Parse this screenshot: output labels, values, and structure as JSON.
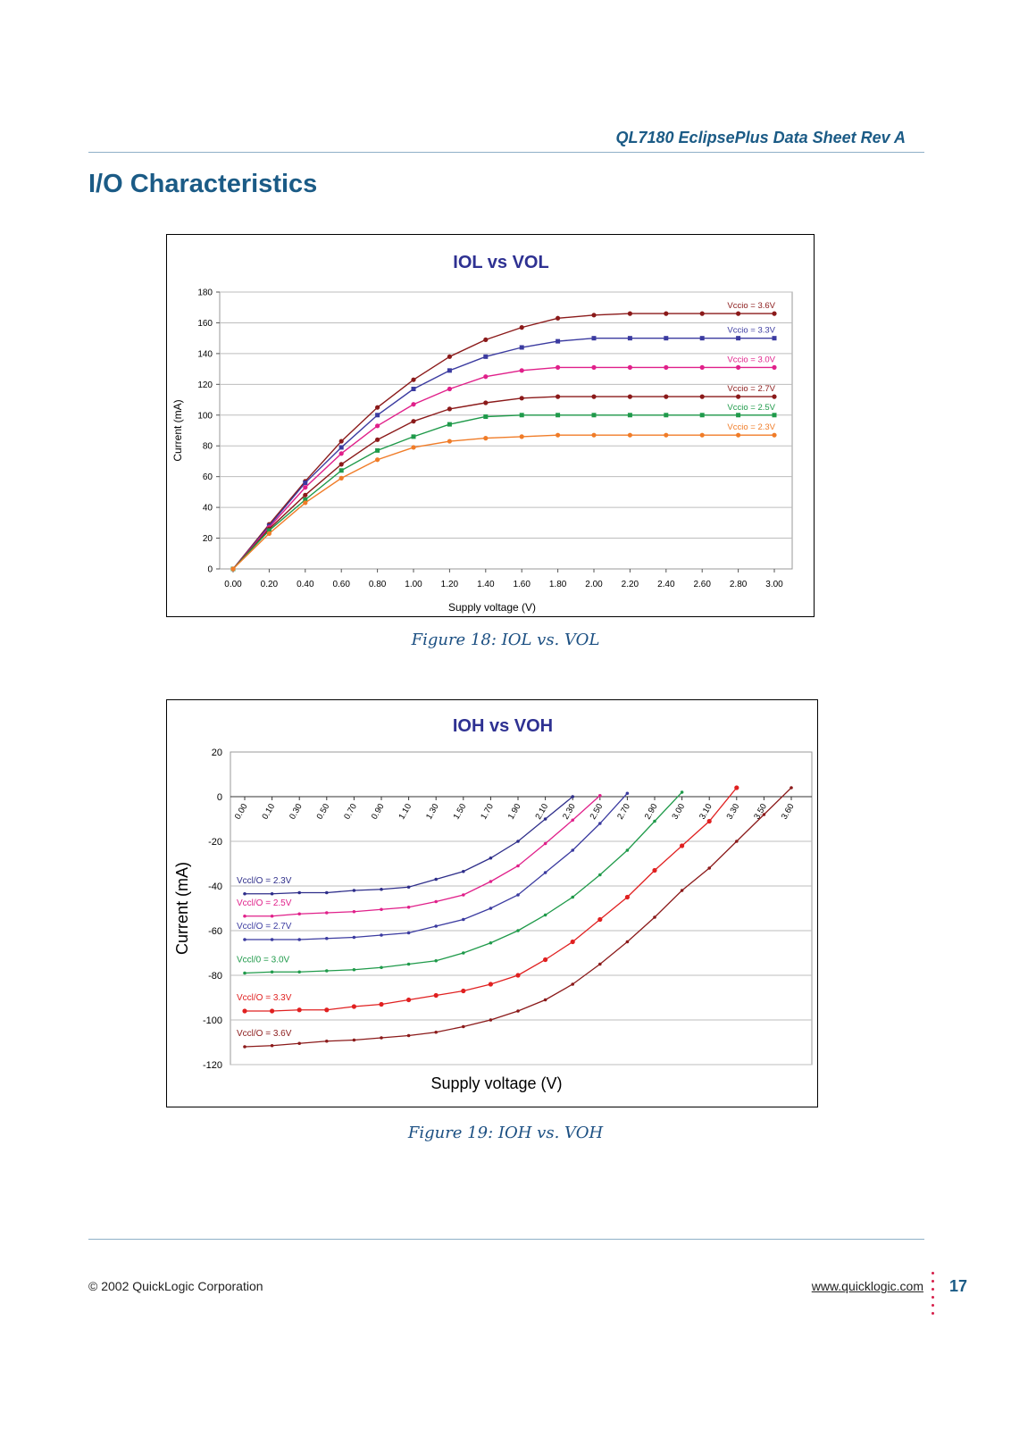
{
  "header": {
    "doc_title": "QL7180 EclipsePlus Data Sheet Rev A"
  },
  "page_title": "I/O Characteristics",
  "footer": {
    "copyright": "© 2002 QuickLogic Corporation",
    "url": "www.quicklogic.com",
    "page_number": "17"
  },
  "figures": [
    {
      "caption": "Figure 18: IOL vs. VOL"
    },
    {
      "caption": "Figure 19: IOH vs. VOH"
    }
  ],
  "chart_data": [
    {
      "type": "line",
      "title": "IOL vs VOL",
      "xlabel": "Supply voltage (V)",
      "ylabel": "Current (mA)",
      "x": [
        0.0,
        0.2,
        0.4,
        0.6,
        0.8,
        1.0,
        1.2,
        1.4,
        1.6,
        1.8,
        2.0,
        2.2,
        2.4,
        2.6,
        2.8,
        3.0
      ],
      "x_tick_labels": [
        "0.00",
        "0.20",
        "0.40",
        "0.60",
        "0.80",
        "1.00",
        "1.20",
        "1.40",
        "1.60",
        "1.80",
        "2.00",
        "2.20",
        "2.40",
        "2.60",
        "2.80",
        "3.00"
      ],
      "y_ticks": [
        0,
        20,
        40,
        60,
        80,
        100,
        120,
        140,
        160,
        180
      ],
      "ylim": [
        0,
        180
      ],
      "grid": true,
      "series": [
        {
          "name": "Vccio = 3.6V",
          "color": "#8b1a1a",
          "marker": "circle",
          "values": [
            0,
            29,
            57,
            83,
            105,
            123,
            138,
            149,
            157,
            163,
            165,
            166,
            166,
            166,
            166,
            166
          ]
        },
        {
          "name": "Vccio = 3.3V",
          "color": "#3b3ba0",
          "marker": "square",
          "values": [
            0,
            28,
            56,
            79,
            100,
            117,
            129,
            138,
            144,
            148,
            150,
            150,
            150,
            150,
            150,
            150
          ]
        },
        {
          "name": "Vccio = 3.0V",
          "color": "#e0208a",
          "marker": "circle",
          "values": [
            0,
            27,
            53,
            75,
            93,
            107,
            117,
            125,
            129,
            131,
            131,
            131,
            131,
            131,
            131,
            131
          ]
        },
        {
          "name": "Vccio = 2.7V",
          "color": "#8b1a1a",
          "marker": "circle",
          "values": [
            0,
            26,
            48,
            68,
            84,
            96,
            104,
            108,
            111,
            112,
            112,
            112,
            112,
            112,
            112,
            112
          ]
        },
        {
          "name": "Vccio = 2.5V",
          "color": "#1f9a4a",
          "marker": "square",
          "values": [
            0,
            25,
            45,
            64,
            77,
            86,
            94,
            99,
            100,
            100,
            100,
            100,
            100,
            100,
            100,
            100
          ]
        },
        {
          "name": "Vccio = 2.3V",
          "color": "#f07c28",
          "marker": "circle",
          "values": [
            0,
            23,
            43,
            59,
            71,
            79,
            83,
            85,
            86,
            87,
            87,
            87,
            87,
            87,
            87,
            87
          ]
        }
      ]
    },
    {
      "type": "line",
      "title": "IOH vs VOH",
      "xlabel": "Supply voltage (V)",
      "ylabel": "Current (mA)",
      "x_tick_labels": [
        "0.00",
        "0.10",
        "0.30",
        "0.50",
        "0.70",
        "0.90",
        "1.10",
        "1.30",
        "1.50",
        "1.70",
        "1.90",
        "2.10",
        "2.30",
        "2.50",
        "2.70",
        "2.90",
        "3.00",
        "3.10",
        "3.30",
        "3.50",
        "3.60"
      ],
      "y_ticks": [
        20,
        0,
        -20,
        -40,
        -60,
        -80,
        -100,
        -120
      ],
      "ylim": [
        -120,
        20
      ],
      "grid": true,
      "series": [
        {
          "name": "Vccl/O = 2.3V",
          "color": "#2e2e8a",
          "marker": "small-circle",
          "values": [
            -43.5,
            -43.5,
            -43,
            -43,
            -42,
            -41.5,
            -40.5,
            -37,
            -33.5,
            -27.5,
            -20,
            -10,
            0
          ]
        },
        {
          "name": "Vccl/O = 2.5V",
          "color": "#e0208a",
          "marker": "small-circle",
          "values": [
            -53.5,
            -53.5,
            -52.5,
            -52,
            -51.5,
            -50.5,
            -49.5,
            -47,
            -44,
            -38,
            -31,
            -21,
            -10.5,
            0.5
          ]
        },
        {
          "name": "Vccl/O = 2.7V",
          "color": "#3b3ba0",
          "marker": "small-circle",
          "values": [
            -64,
            -64,
            -64,
            -63.5,
            -63,
            -62,
            -61,
            -58,
            -55,
            -50,
            -44,
            -34,
            -24,
            -12,
            1.5
          ]
        },
        {
          "name": "Vccl/0 = 3.0V",
          "color": "#1f9a4a",
          "marker": "small-circle",
          "values": [
            -79,
            -78.5,
            -78.5,
            -78,
            -77.5,
            -76.5,
            -75,
            -73.5,
            -70,
            -65.5,
            -60,
            -53,
            -45,
            -35,
            -24,
            -11,
            2
          ]
        },
        {
          "name": "Vccl/O = 3.3V",
          "color": "#e02020",
          "marker": "circle",
          "values": [
            -96,
            -96,
            -95.5,
            -95.5,
            -94,
            -93,
            -91,
            -89,
            -87,
            -84,
            -80,
            -73,
            -65,
            -55,
            -45,
            -33,
            -22,
            -11,
            4
          ]
        },
        {
          "name": "Vccl/O = 3.6V",
          "color": "#8b1a1a",
          "marker": "small-circle",
          "values": [
            -112,
            -111.5,
            -110.5,
            -109.5,
            -109,
            -108,
            -107,
            -105.5,
            -103,
            -100,
            -96,
            -91,
            -84,
            -75,
            -65,
            -54,
            -42,
            -32,
            -20,
            -8,
            4
          ]
        }
      ]
    }
  ]
}
